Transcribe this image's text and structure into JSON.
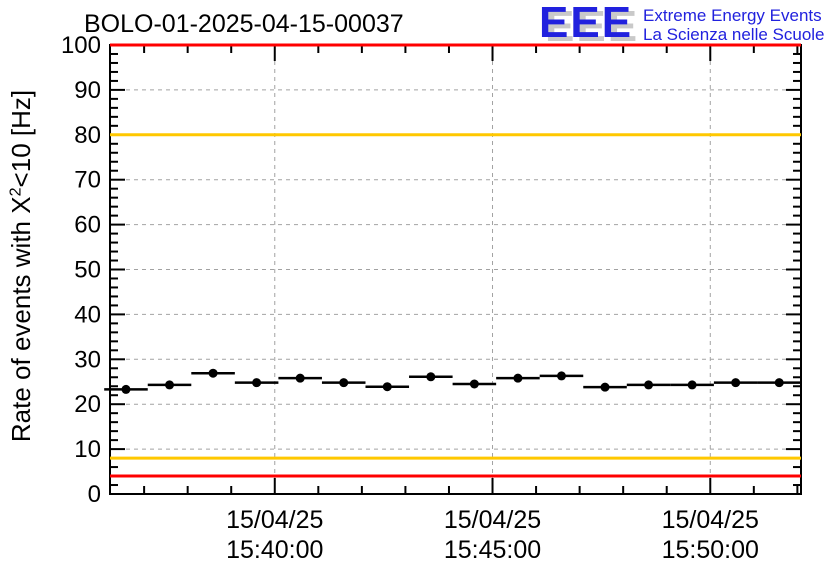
{
  "header": {
    "title": "BOLO-01-2025-04-15-00037",
    "logo": {
      "acronym": "EEE",
      "line1": "Extreme Energy Events",
      "line2": "La Scienza nelle Scuole",
      "blue": "#2121de",
      "shadow_gray": "#c9c9c9"
    }
  },
  "chart_data": {
    "type": "scatter",
    "title": "BOLO-01-2025-04-15-00037",
    "ylabel": "Rate of events with X^2<10 [Hz]",
    "ylabel_parts": {
      "prefix": "Rate of events with X",
      "sup": "2",
      "suffix": "<10 [Hz]"
    },
    "x_axis": {
      "start": "15:36:13",
      "end": "15:52:05",
      "minor_tick_seconds": 60,
      "major_ticks": [
        {
          "date": "15/04/25",
          "time": "15:40:00"
        },
        {
          "date": "15/04/25",
          "time": "15:45:00"
        },
        {
          "date": "15/04/25",
          "time": "15:50:00"
        }
      ]
    },
    "y_axis": {
      "min": 0,
      "max": 100,
      "major_step": 10,
      "minor_step": 2,
      "ticks": [
        {
          "label": "0",
          "value": 0
        },
        {
          "label": "10",
          "value": 10
        },
        {
          "label": "20",
          "value": 20
        },
        {
          "label": "30",
          "value": 30
        },
        {
          "label": "40",
          "value": 40
        },
        {
          "label": "50",
          "value": 50
        },
        {
          "label": "60",
          "value": 60
        },
        {
          "label": "70",
          "value": 70
        },
        {
          "label": "80",
          "value": 80
        },
        {
          "label": "90",
          "value": 90
        },
        {
          "label": "100",
          "value": 100
        }
      ]
    },
    "series": [
      {
        "name": "event-rate",
        "marker": "filled-circle",
        "color": "#000000",
        "bin_halfwidth_seconds": 30,
        "points": [
          {
            "time": "15:36:35",
            "rate": 23.3
          },
          {
            "time": "15:37:35",
            "rate": 24.3
          },
          {
            "time": "15:38:35",
            "rate": 26.9
          },
          {
            "time": "15:39:35",
            "rate": 24.8
          },
          {
            "time": "15:40:35",
            "rate": 25.8
          },
          {
            "time": "15:41:35",
            "rate": 24.8
          },
          {
            "time": "15:42:35",
            "rate": 23.9
          },
          {
            "time": "15:43:35",
            "rate": 26.1
          },
          {
            "time": "15:44:35",
            "rate": 24.5
          },
          {
            "time": "15:45:35",
            "rate": 25.8
          },
          {
            "time": "15:46:35",
            "rate": 26.3
          },
          {
            "time": "15:47:35",
            "rate": 23.8
          },
          {
            "time": "15:48:35",
            "rate": 24.3
          },
          {
            "time": "15:49:35",
            "rate": 24.3
          },
          {
            "time": "15:50:35",
            "rate": 24.8
          },
          {
            "time": "15:51:35",
            "rate": 24.8
          }
        ]
      }
    ],
    "threshold_lines": [
      {
        "value": 100,
        "color": "#ff0000"
      },
      {
        "value": 80,
        "color": "#ffc800"
      },
      {
        "value": 8,
        "color": "#ffc800"
      },
      {
        "value": 4,
        "color": "#ff0000"
      }
    ],
    "grid": {
      "show": true,
      "style": "dashed",
      "color": "#a2a2a2"
    },
    "frame_color": "#000000",
    "background": "#ffffff"
  }
}
